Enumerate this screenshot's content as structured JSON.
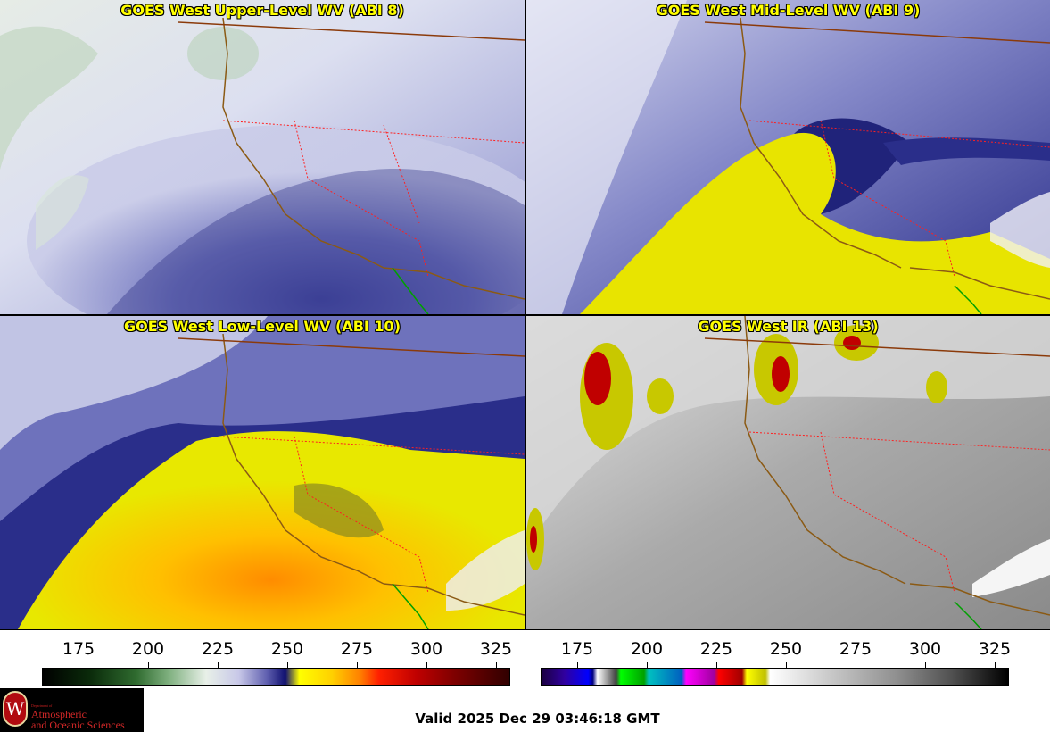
{
  "panels": [
    {
      "title": "GOES West Upper-Level WV (ABI 8)"
    },
    {
      "title": "GOES West Mid-Level WV (ABI 9)"
    },
    {
      "title": "GOES West Low-Level WV (ABI 10)"
    },
    {
      "title": "GOES West IR (ABI 13)"
    }
  ],
  "colorbar_wv": {
    "ticks": [
      "175",
      "200",
      "225",
      "250",
      "275",
      "300",
      "325"
    ]
  },
  "colorbar_ir": {
    "ticks": [
      "175",
      "200",
      "225",
      "250",
      "275",
      "300",
      "325"
    ]
  },
  "valid_time": "Valid 2025 Dec 29 03:46:18 GMT",
  "logo": {
    "small_text": "Department of",
    "line1": "Atmospheric",
    "line2": "and Oceanic Sciences",
    "seal_letter": "W"
  },
  "colors": {
    "title_text": "#ffff00",
    "state_borders": "#ff2020",
    "coastline": "#8b5a14",
    "mexico_border": "#00a000"
  }
}
